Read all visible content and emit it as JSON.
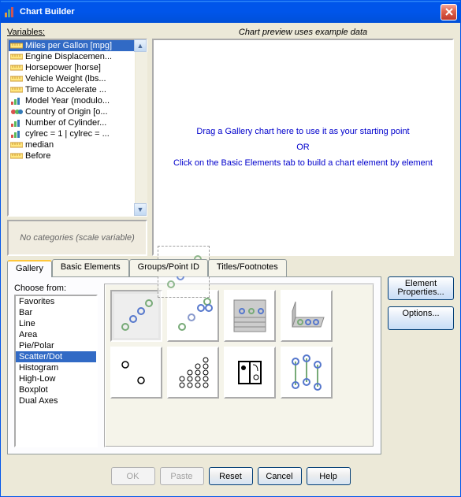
{
  "window": {
    "title": "Chart Builder"
  },
  "labels": {
    "variables": "Variables:",
    "preview_header": "Chart preview uses example data",
    "no_categories": "No categories (scale variable)",
    "choose_from": "Choose from:"
  },
  "variables": {
    "selected_index": 0,
    "items": [
      {
        "icon": "ruler",
        "label": "Miles per Gallon [mpg]"
      },
      {
        "icon": "ruler",
        "label": "Engine Displacemen..."
      },
      {
        "icon": "ruler",
        "label": "Horsepower [horse]"
      },
      {
        "icon": "ruler",
        "label": "Vehicle Weight (lbs..."
      },
      {
        "icon": "ruler",
        "label": "Time to Accelerate ..."
      },
      {
        "icon": "bars",
        "label": "Model Year (modulo..."
      },
      {
        "icon": "nominal",
        "label": "Country of Origin [o..."
      },
      {
        "icon": "bars",
        "label": "Number of Cylinder..."
      },
      {
        "icon": "bars",
        "label": "cylrec = 1 | cylrec = ..."
      },
      {
        "icon": "ruler",
        "label": "median"
      },
      {
        "icon": "ruler",
        "label": "Before"
      }
    ]
  },
  "preview_hints": {
    "line1": "Drag a Gallery chart here to use it as your starting point",
    "line2": "OR",
    "line3": "Click on the Basic Elements tab to build a chart element by element"
  },
  "tabs": {
    "active_index": 0,
    "items": [
      "Gallery",
      "Basic Elements",
      "Groups/Point ID",
      "Titles/Footnotes"
    ]
  },
  "gallery_categories": {
    "selected_index": 5,
    "items": [
      "Favorites",
      "Bar",
      "Line",
      "Area",
      "Pie/Polar",
      "Scatter/Dot",
      "Histogram",
      "High-Low",
      "Boxplot",
      "Dual Axes"
    ]
  },
  "gallery_thumbs": {
    "selected_index": 0,
    "count": 8
  },
  "side_buttons": {
    "element_properties": "Element Properties...",
    "options": "Options..."
  },
  "bottom_buttons": {
    "ok": "OK",
    "paste": "Paste",
    "reset": "Reset",
    "cancel": "Cancel",
    "help": "Help"
  },
  "colors": {
    "titlebar_gradient_top": "#3a95ff",
    "titlebar_gradient_bottom": "#0055ea",
    "window_bg": "#ece9d8",
    "selection": "#316ac5",
    "hint_text": "#0000cc",
    "button_border": "#003c74"
  }
}
